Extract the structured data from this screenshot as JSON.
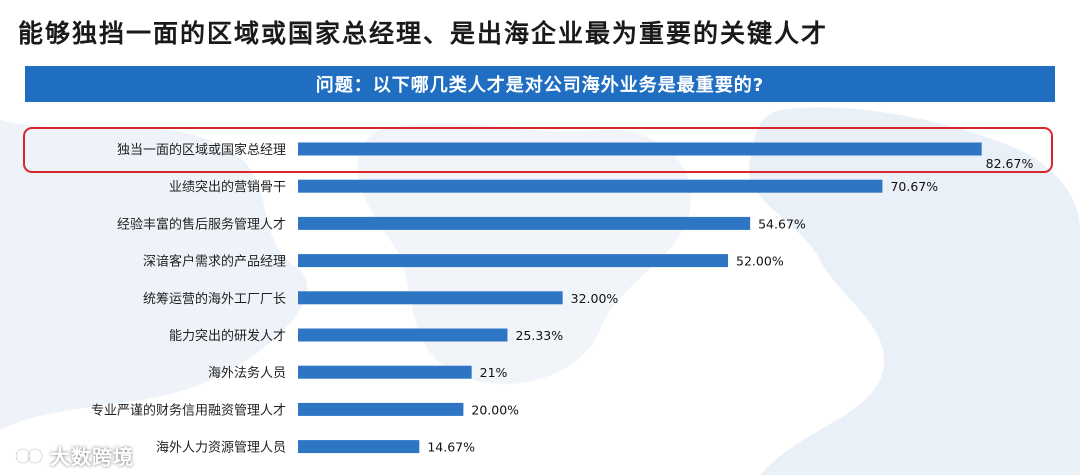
{
  "headline": "能够独挡一面的区域或国家总经理、是出海企业最为重要的关键人才",
  "question": "问题：以下哪几类人才是对公司海外业务是最重要的?",
  "watermark": "大数跨境",
  "colors": {
    "bar": "#2e76c4",
    "header": "#1f6ec2",
    "highlight": "#d9262c"
  },
  "chart_data": {
    "type": "bar",
    "orientation": "horizontal",
    "categories": [
      "独当一面的区域或国家总经理",
      "业绩突出的营销骨干",
      "经验丰富的售后服务管理人才",
      "深谙客户需求的产品经理",
      "统筹运营的海外工厂厂长",
      "能力突出的研发人才",
      "海外法务人员",
      "专业严谨的财务信用融资管理人才",
      "海外人力资源管理人员"
    ],
    "values": [
      82.67,
      70.67,
      54.67,
      52.0,
      32.0,
      25.33,
      21,
      20.0,
      14.67
    ],
    "data_labels": [
      "82.67%",
      "70.67%",
      "54.67%",
      "52.00%",
      "32.00%",
      "25.33%",
      "21%",
      "20.00%",
      "14.67%"
    ],
    "highlighted_index": 0,
    "xlim": [
      0,
      100
    ],
    "grid": false
  }
}
